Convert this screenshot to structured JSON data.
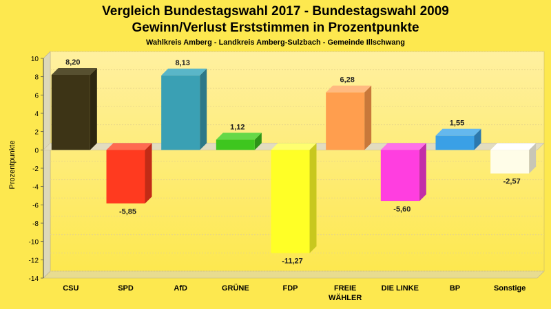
{
  "chart_data": {
    "type": "bar",
    "title": "Vergleich Bundestagswahl 2017 - Bundestagswahl 2009",
    "subtitle": "Gewinn/Verlust Erststimmen in Prozentpunkte",
    "caption": "Wahlkreis Amberg - Landkreis Amberg-Sulzbach - Gemeinde Illschwang",
    "ylabel": "Prozentpunkte",
    "xlabel": "",
    "ylim": [
      -14,
      10
    ],
    "ytick_step": 2,
    "yticks": [
      "10",
      "8",
      "6",
      "4",
      "2",
      "0",
      "-2",
      "-4",
      "-6",
      "-8",
      "-10",
      "-12",
      "-14"
    ],
    "grid": true,
    "categories": [
      "CSU",
      "SPD",
      "AfD",
      "GRÜNE",
      "FDP",
      "FREIE WÄHLER",
      "DIE LINKE",
      "BP",
      "Sonstige"
    ],
    "category_lines": [
      [
        "CSU"
      ],
      [
        "SPD"
      ],
      [
        "AfD"
      ],
      [
        "GRÜNE"
      ],
      [
        "FDP"
      ],
      [
        "FREIE",
        "WÄHLER"
      ],
      [
        "DIE LINKE"
      ],
      [
        "BP"
      ],
      [
        "Sonstige"
      ]
    ],
    "values": [
      8.2,
      -5.85,
      8.13,
      1.12,
      -11.27,
      6.28,
      -5.6,
      1.55,
      -2.57
    ],
    "value_labels": [
      "8,20",
      "-5,85",
      "8,13",
      "1,12",
      "-11,27",
      "6,28",
      "-5,60",
      "1,55",
      "-2,57"
    ],
    "colors": [
      "#3d3416",
      "#ff3a1f",
      "#3aa0b4",
      "#3ec61f",
      "#ffff26",
      "#ff9e4e",
      "#ff3ee0",
      "#3aa0e6",
      "#fffde8"
    ],
    "colors_side": [
      "#2c2610",
      "#c22b16",
      "#2c7888",
      "#2e9418",
      "#c8c81e",
      "#c8783a",
      "#c22ea8",
      "#2c78ae",
      "#c8c6b6"
    ],
    "colors_top": [
      "#575030",
      "#ff6a50",
      "#5ab6c8",
      "#66d848",
      "#ffff70",
      "#ffba80",
      "#ff70e8",
      "#64b8ee",
      "#ffffff"
    ]
  }
}
